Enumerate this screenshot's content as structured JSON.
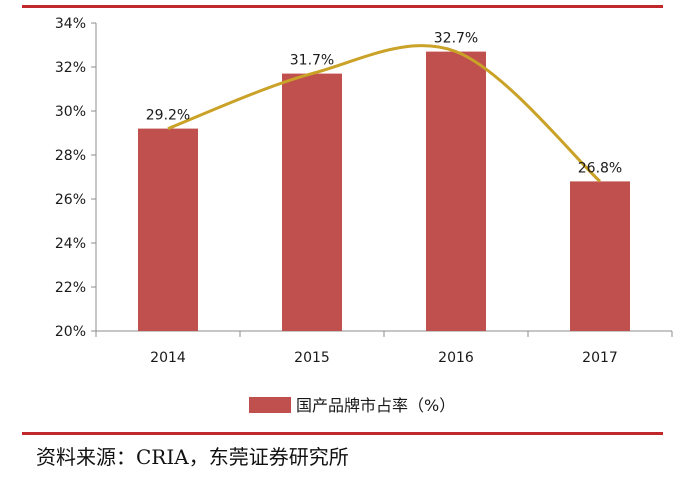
{
  "chart_data": {
    "type": "bar",
    "categories": [
      "2014",
      "2015",
      "2016",
      "2017"
    ],
    "series": [
      {
        "name": "国产品牌市占率（%）",
        "values": [
          29.2,
          31.7,
          32.7,
          26.8
        ],
        "color": "#c0504d"
      }
    ],
    "data_labels": [
      "29.2%",
      "31.7%",
      "32.7%",
      "26.8%"
    ],
    "y_ticks": [
      "20%",
      "22%",
      "24%",
      "26%",
      "28%",
      "30%",
      "32%",
      "34%"
    ],
    "ylim": [
      20,
      34
    ],
    "trend_line_color": "#c9a227",
    "grid": false,
    "legend_position": "bottom"
  },
  "source_text": "资料来源：CRIA，东莞证券研究所"
}
